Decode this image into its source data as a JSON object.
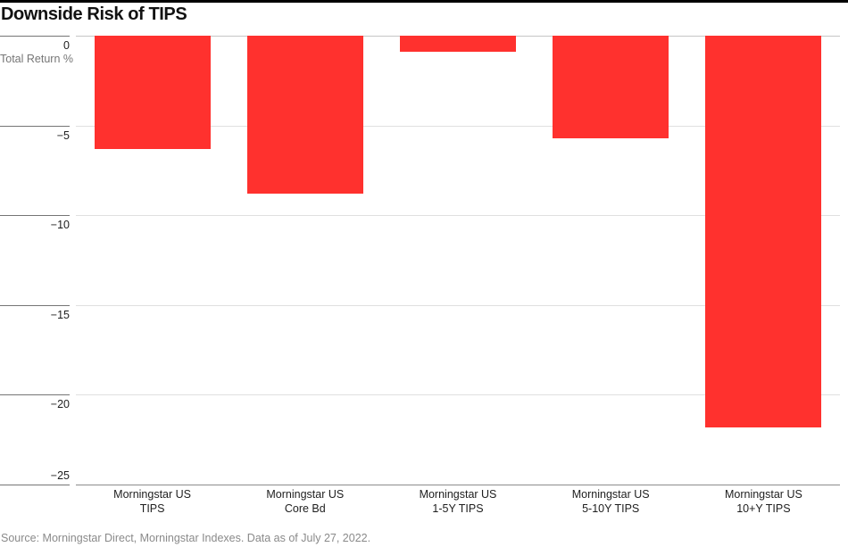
{
  "header": {
    "title": "Downside Risk of TIPS"
  },
  "yaxis": {
    "unit_label": "Total Return %"
  },
  "chart_data": {
    "type": "bar",
    "title": "Downside Risk of TIPS",
    "ylabel": "Total Return %",
    "xlabel": "",
    "ylim": [
      -25,
      0
    ],
    "yticks": [
      0,
      -5,
      -10,
      -15,
      -20,
      -25
    ],
    "grid": true,
    "legend_position": "none",
    "categories": [
      [
        "Morningstar US",
        "TIPS"
      ],
      [
        "Morningstar US",
        "Core Bd"
      ],
      [
        "Morningstar US",
        "1-5Y TIPS"
      ],
      [
        "Morningstar US",
        "5-10Y TIPS"
      ],
      [
        "Morningstar US",
        "10+Y TIPS"
      ]
    ],
    "values": [
      -6.3,
      -8.8,
      -0.9,
      -5.7,
      -21.8
    ],
    "bar_color": "#ff312e"
  },
  "colors": {
    "accent_red": "#ff312e",
    "title_text": "#121212",
    "tick_text": "#1e1e1e",
    "muted_text": "#8a8a8a",
    "gutter_line": "#757575",
    "grid_line": "#e0e0e0",
    "zero_line": "#c6c6c6",
    "baseline": "#8c8c8c",
    "top_rule": "#000000"
  },
  "footer": {
    "source": "Source: Morningstar Direct, Morningstar Indexes. Data as of July 27, 2022."
  }
}
